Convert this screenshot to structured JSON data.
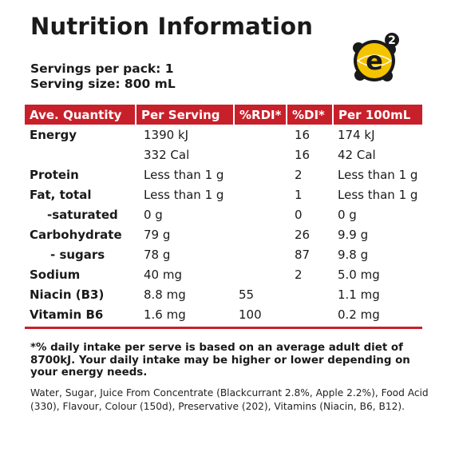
{
  "title": "Nutrition Information",
  "servings_per_pack": "Servings per pack: 1",
  "serving_size": "Serving size: 800 mL",
  "logo": {
    "icon": "e2-logo",
    "text": "e",
    "superscript": "2"
  },
  "colors": {
    "accent": "#c8202a",
    "logo_yellow": "#f5c400"
  },
  "table": {
    "headers": [
      "Ave. Quantity",
      "Per Serving",
      "%RDI*",
      "%DI*",
      "Per 100mL"
    ],
    "rows": [
      [
        "Energy",
        "1390 kJ",
        "",
        "16",
        "174 kJ"
      ],
      [
        "",
        "332 Cal",
        "",
        "16",
        "42 Cal"
      ],
      [
        "Protein",
        "Less than 1 g",
        "",
        "2",
        "Less than 1 g"
      ],
      [
        "Fat, total",
        "Less than 1 g",
        "",
        "1",
        "Less than 1 g"
      ],
      [
        "-saturated",
        "0 g",
        "",
        "0",
        "0 g"
      ],
      [
        "Carbohydrate",
        "79 g",
        "",
        "26",
        "9.9 g"
      ],
      [
        "- sugars",
        "78 g",
        "",
        "87",
        "9.8 g"
      ],
      [
        "Sodium",
        "40 mg",
        "",
        "2",
        "5.0 mg"
      ],
      [
        "Niacin (B3)",
        "8.8 mg",
        "55",
        "",
        "1.1 mg"
      ],
      [
        "Vitamin B6",
        "1.6 mg",
        "100",
        "",
        "0.2 mg"
      ]
    ]
  },
  "footnote": "*% daily intake per serve is based on an average adult diet of 8700kJ. Your daily intake may be higher or lower depending on your energy needs.",
  "ingredients": "Water, Sugar, Juice From Concentrate (Blackcurrant 2.8%, Apple 2.2%), Food Acid (330), Flavour, Colour (150d), Preservative (202), Vitamins (Niacin, B6, B12)."
}
